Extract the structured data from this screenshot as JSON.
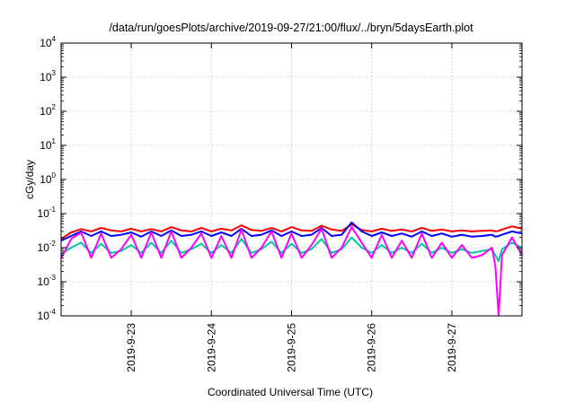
{
  "chart_data": {
    "type": "line",
    "title": "/data/run/goesPlots/archive/2019-09-27/21:00/flux/../bryn/5daysEarth.plot",
    "xlabel": "Coordinated Universal Time (UTC)",
    "ylabel": "cGy/day",
    "xlim": [
      "2019-09-22T03:00",
      "2019-09-27T21:00"
    ],
    "ylim": [
      0.0001,
      10000
    ],
    "yscale": "log",
    "grid": true,
    "legend": "none",
    "x_ticks": [
      {
        "x": "2019-09-23",
        "label": "2019-9-23"
      },
      {
        "x": "2019-09-24",
        "label": "2019-9-24"
      },
      {
        "x": "2019-09-25",
        "label": "2019-9-25"
      },
      {
        "x": "2019-09-26",
        "label": "2019-9-26"
      },
      {
        "x": "2019-09-27",
        "label": "2019-9-27"
      }
    ],
    "y_ticks": [
      {
        "value": 0.0001,
        "base": "10",
        "exp": "-4"
      },
      {
        "value": 0.001,
        "base": "10",
        "exp": "-3"
      },
      {
        "value": 0.01,
        "base": "10",
        "exp": "-2"
      },
      {
        "value": 0.1,
        "base": "10",
        "exp": "-1"
      },
      {
        "value": 1,
        "base": "10",
        "exp": "0"
      },
      {
        "value": 10,
        "base": "10",
        "exp": "1"
      },
      {
        "value": 100,
        "base": "10",
        "exp": "2"
      },
      {
        "value": 1000,
        "base": "10",
        "exp": "3"
      },
      {
        "value": 10000,
        "base": "10",
        "exp": "4"
      }
    ],
    "series": [
      {
        "color": "#ff0000",
        "x": [
          "2019-09-22T03:00",
          "2019-09-22T06:00",
          "2019-09-22T09:00",
          "2019-09-22T12:00",
          "2019-09-22T15:00",
          "2019-09-22T18:00",
          "2019-09-22T21:00",
          "2019-09-23T00:00",
          "2019-09-23T03:00",
          "2019-09-23T06:00",
          "2019-09-23T09:00",
          "2019-09-23T12:00",
          "2019-09-23T15:00",
          "2019-09-23T18:00",
          "2019-09-23T21:00",
          "2019-09-24T00:00",
          "2019-09-24T03:00",
          "2019-09-24T06:00",
          "2019-09-24T09:00",
          "2019-09-24T12:00",
          "2019-09-24T15:00",
          "2019-09-24T18:00",
          "2019-09-24T21:00",
          "2019-09-25T00:00",
          "2019-09-25T03:00",
          "2019-09-25T06:00",
          "2019-09-25T09:00",
          "2019-09-25T12:00",
          "2019-09-25T15:00",
          "2019-09-25T18:00",
          "2019-09-25T21:00",
          "2019-09-26T00:00",
          "2019-09-26T03:00",
          "2019-09-26T06:00",
          "2019-09-26T09:00",
          "2019-09-26T12:00",
          "2019-09-26T15:00",
          "2019-09-26T18:00",
          "2019-09-26T21:00",
          "2019-09-27T00:00",
          "2019-09-27T03:00",
          "2019-09-27T06:00",
          "2019-09-27T09:00",
          "2019-09-27T12:00",
          "2019-09-27T13:00",
          "2019-09-27T14:00",
          "2019-09-27T15:00",
          "2019-09-27T18:00",
          "2019-09-27T21:00"
        ],
        "y": [
          0.018,
          0.028,
          0.035,
          0.03,
          0.038,
          0.032,
          0.03,
          0.036,
          0.03,
          0.035,
          0.03,
          0.04,
          0.032,
          0.03,
          0.038,
          0.03,
          0.036,
          0.032,
          0.045,
          0.033,
          0.031,
          0.038,
          0.03,
          0.04,
          0.032,
          0.031,
          0.044,
          0.034,
          0.031,
          0.048,
          0.033,
          0.03,
          0.036,
          0.031,
          0.034,
          0.03,
          0.038,
          0.031,
          0.034,
          0.03,
          0.032,
          0.03,
          0.031,
          0.032,
          0.03,
          0.031,
          0.034,
          0.042,
          0.036
        ]
      },
      {
        "color": "#0000ff",
        "x": [
          "2019-09-22T03:00",
          "2019-09-22T06:00",
          "2019-09-22T09:00",
          "2019-09-22T12:00",
          "2019-09-22T15:00",
          "2019-09-22T18:00",
          "2019-09-22T21:00",
          "2019-09-23T00:00",
          "2019-09-23T03:00",
          "2019-09-23T06:00",
          "2019-09-23T09:00",
          "2019-09-23T12:00",
          "2019-09-23T15:00",
          "2019-09-23T18:00",
          "2019-09-23T21:00",
          "2019-09-24T00:00",
          "2019-09-24T03:00",
          "2019-09-24T06:00",
          "2019-09-24T09:00",
          "2019-09-24T12:00",
          "2019-09-24T15:00",
          "2019-09-24T18:00",
          "2019-09-24T21:00",
          "2019-09-25T00:00",
          "2019-09-25T03:00",
          "2019-09-25T06:00",
          "2019-09-25T09:00",
          "2019-09-25T12:00",
          "2019-09-25T15:00",
          "2019-09-25T18:00",
          "2019-09-25T21:00",
          "2019-09-26T00:00",
          "2019-09-26T03:00",
          "2019-09-26T06:00",
          "2019-09-26T09:00",
          "2019-09-26T12:00",
          "2019-09-26T15:00",
          "2019-09-26T18:00",
          "2019-09-26T21:00",
          "2019-09-27T00:00",
          "2019-09-27T03:00",
          "2019-09-27T06:00",
          "2019-09-27T09:00",
          "2019-09-27T12:00",
          "2019-09-27T13:00",
          "2019-09-27T14:00",
          "2019-09-27T15:00",
          "2019-09-27T18:00",
          "2019-09-27T21:00"
        ],
        "y": [
          0.016,
          0.022,
          0.03,
          0.022,
          0.03,
          0.022,
          0.024,
          0.028,
          0.021,
          0.03,
          0.022,
          0.032,
          0.022,
          0.024,
          0.03,
          0.022,
          0.028,
          0.022,
          0.036,
          0.022,
          0.024,
          0.032,
          0.022,
          0.03,
          0.022,
          0.024,
          0.038,
          0.022,
          0.024,
          0.055,
          0.03,
          0.022,
          0.028,
          0.022,
          0.026,
          0.021,
          0.03,
          0.022,
          0.026,
          0.021,
          0.024,
          0.021,
          0.022,
          0.024,
          0.021,
          0.022,
          0.024,
          0.03,
          0.026
        ]
      },
      {
        "color": "#00c8a0",
        "x": [
          "2019-09-22T03:00",
          "2019-09-22T06:00",
          "2019-09-22T09:00",
          "2019-09-22T12:00",
          "2019-09-22T15:00",
          "2019-09-22T18:00",
          "2019-09-22T21:00",
          "2019-09-23T00:00",
          "2019-09-23T03:00",
          "2019-09-23T06:00",
          "2019-09-23T09:00",
          "2019-09-23T12:00",
          "2019-09-23T15:00",
          "2019-09-23T18:00",
          "2019-09-23T21:00",
          "2019-09-24T00:00",
          "2019-09-24T03:00",
          "2019-09-24T06:00",
          "2019-09-24T09:00",
          "2019-09-24T12:00",
          "2019-09-24T15:00",
          "2019-09-24T18:00",
          "2019-09-24T21:00",
          "2019-09-25T00:00",
          "2019-09-25T03:00",
          "2019-09-25T06:00",
          "2019-09-25T09:00",
          "2019-09-25T12:00",
          "2019-09-25T15:00",
          "2019-09-25T18:00",
          "2019-09-25T21:00",
          "2019-09-26T00:00",
          "2019-09-26T03:00",
          "2019-09-26T06:00",
          "2019-09-26T09:00",
          "2019-09-26T12:00",
          "2019-09-26T15:00",
          "2019-09-26T18:00",
          "2019-09-26T21:00",
          "2019-09-27T00:00",
          "2019-09-27T03:00",
          "2019-09-27T06:00",
          "2019-09-27T09:00",
          "2019-09-27T12:00",
          "2019-09-27T13:00",
          "2019-09-27T14:00",
          "2019-09-27T15:00",
          "2019-09-27T18:00",
          "2019-09-27T21:00"
        ],
        "y": [
          0.0065,
          0.01,
          0.014,
          0.007,
          0.013,
          0.007,
          0.008,
          0.012,
          0.007,
          0.014,
          0.007,
          0.016,
          0.007,
          0.009,
          0.013,
          0.007,
          0.012,
          0.007,
          0.018,
          0.007,
          0.009,
          0.015,
          0.007,
          0.013,
          0.007,
          0.009,
          0.018,
          0.007,
          0.009,
          0.02,
          0.01,
          0.007,
          0.012,
          0.007,
          0.01,
          0.007,
          0.013,
          0.007,
          0.01,
          0.007,
          0.009,
          0.007,
          0.008,
          0.009,
          0.006,
          0.004,
          0.009,
          0.014,
          0.01
        ]
      },
      {
        "color": "#ff00ff",
        "x": [
          "2019-09-22T03:00",
          "2019-09-22T06:00",
          "2019-09-22T09:00",
          "2019-09-22T12:00",
          "2019-09-22T15:00",
          "2019-09-22T18:00",
          "2019-09-22T21:00",
          "2019-09-23T00:00",
          "2019-09-23T03:00",
          "2019-09-23T06:00",
          "2019-09-23T09:00",
          "2019-09-23T12:00",
          "2019-09-23T15:00",
          "2019-09-23T18:00",
          "2019-09-23T21:00",
          "2019-09-24T00:00",
          "2019-09-24T03:00",
          "2019-09-24T06:00",
          "2019-09-24T09:00",
          "2019-09-24T12:00",
          "2019-09-24T15:00",
          "2019-09-24T18:00",
          "2019-09-24T21:00",
          "2019-09-25T00:00",
          "2019-09-25T03:00",
          "2019-09-25T06:00",
          "2019-09-25T09:00",
          "2019-09-25T12:00",
          "2019-09-25T15:00",
          "2019-09-25T18:00",
          "2019-09-25T21:00",
          "2019-09-26T00:00",
          "2019-09-26T03:00",
          "2019-09-26T06:00",
          "2019-09-26T09:00",
          "2019-09-26T12:00",
          "2019-09-26T15:00",
          "2019-09-26T18:00",
          "2019-09-26T21:00",
          "2019-09-27T00:00",
          "2019-09-27T03:00",
          "2019-09-27T06:00",
          "2019-09-27T09:00",
          "2019-09-27T12:00",
          "2019-09-27T13:00",
          "2019-09-27T14:00",
          "2019-09-27T15:00",
          "2019-09-27T18:00",
          "2019-09-27T21:00"
        ],
        "y": [
          0.0048,
          0.018,
          0.028,
          0.005,
          0.026,
          0.005,
          0.009,
          0.024,
          0.005,
          0.028,
          0.005,
          0.03,
          0.005,
          0.01,
          0.026,
          0.005,
          0.022,
          0.005,
          0.034,
          0.005,
          0.01,
          0.03,
          0.005,
          0.026,
          0.005,
          0.012,
          0.036,
          0.005,
          0.01,
          0.04,
          0.014,
          0.005,
          0.024,
          0.005,
          0.016,
          0.005,
          0.026,
          0.005,
          0.014,
          0.005,
          0.012,
          0.005,
          0.006,
          0.01,
          0.003,
          0.0001,
          0.006,
          0.02,
          0.006
        ]
      }
    ]
  }
}
